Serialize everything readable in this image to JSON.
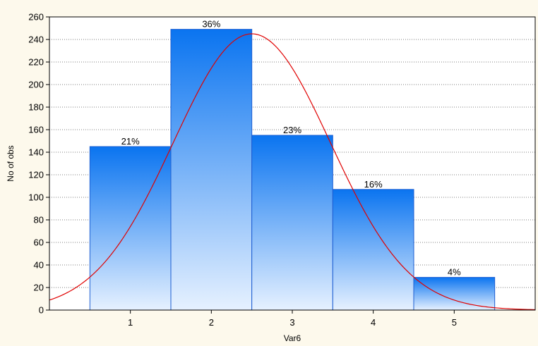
{
  "chart_data": {
    "type": "bar",
    "categories": [
      "1",
      "2",
      "3",
      "4",
      "5"
    ],
    "values": [
      145,
      249,
      155,
      107,
      29
    ],
    "data_labels": [
      "21%",
      "36%",
      "23%",
      "16%",
      "4%"
    ],
    "xlabel": "Var6",
    "ylabel": "No of obs",
    "ylim": [
      0,
      260
    ],
    "xlim": [
      0,
      6
    ],
    "yticks": [
      0,
      20,
      40,
      60,
      80,
      100,
      120,
      140,
      160,
      180,
      200,
      220,
      240,
      260
    ],
    "grid": "horizontal dotted",
    "overlay_curve": {
      "type": "normal",
      "color": "#e00000",
      "peak_x": 2.5,
      "peak_y": 245,
      "sd": 0.97
    },
    "colors": {
      "bar_top": "#0a74f0",
      "bar_bottom": "#e6f1ff",
      "bar_stroke": "#1e5fd2",
      "background": "#fdf9ec",
      "plot_bg": "#ffffff"
    }
  }
}
